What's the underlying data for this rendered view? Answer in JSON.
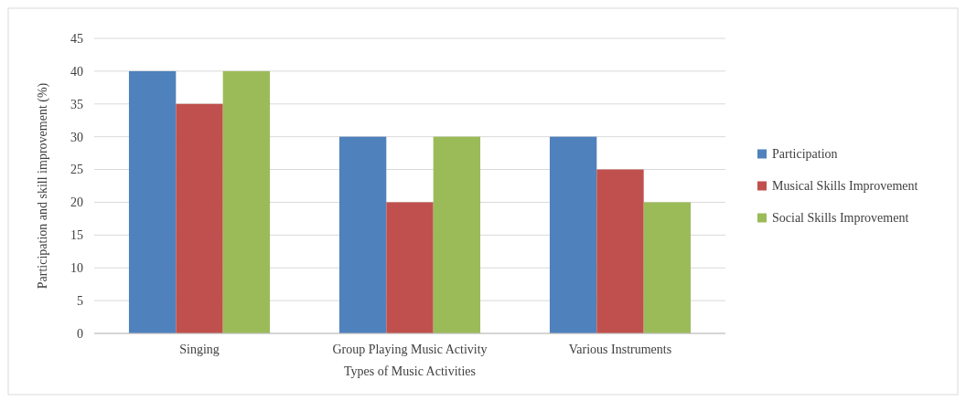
{
  "chart_data": {
    "type": "bar",
    "xlabel": "Types of Music Activities",
    "ylabel": "Participation and skill improvement (%)",
    "categories": [
      "Singing",
      "Group Playing Music Activity",
      "Various Instruments"
    ],
    "series": [
      {
        "name": "Participation",
        "color": "#4f81bd",
        "values": [
          40,
          30,
          30
        ]
      },
      {
        "name": "Musical Skills Improvement",
        "color": "#c0504d",
        "values": [
          35,
          20,
          25
        ]
      },
      {
        "name": "Social Skills Improvement",
        "color": "#9bbb59",
        "values": [
          40,
          30,
          20
        ]
      }
    ],
    "ylim": [
      0,
      45
    ],
    "yticks": [
      0,
      5,
      10,
      15,
      20,
      25,
      30,
      35,
      40,
      45
    ],
    "grid": "y",
    "legend": "right"
  }
}
